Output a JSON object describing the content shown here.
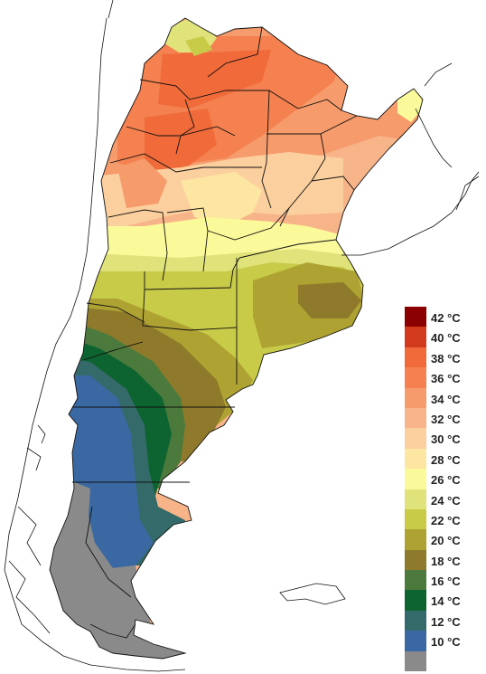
{
  "legend": {
    "items": [
      {
        "label": "42 °C",
        "color": "#8b0000"
      },
      {
        "label": "40 °C",
        "color": "#d23a1e"
      },
      {
        "label": "38 °C",
        "color": "#f06a3a"
      },
      {
        "label": "36 °C",
        "color": "#f4814f"
      },
      {
        "label": "34 °C",
        "color": "#f69b6b"
      },
      {
        "label": "32 °C",
        "color": "#f8b489"
      },
      {
        "label": "30 °C",
        "color": "#fbcf9e"
      },
      {
        "label": "28 °C",
        "color": "#fde6a1"
      },
      {
        "label": "26 °C",
        "color": "#fbfa9a"
      },
      {
        "label": "24 °C",
        "color": "#e0e27a"
      },
      {
        "label": "22 °C",
        "color": "#c8cb48"
      },
      {
        "label": "20 °C",
        "color": "#aea233"
      },
      {
        "label": "18 °C",
        "color": "#8e7a2a"
      },
      {
        "label": "16 °C",
        "color": "#4c7a3c"
      },
      {
        "label": "14 °C",
        "color": "#0d6430"
      },
      {
        "label": "12 °C",
        "color": "#356a6a"
      },
      {
        "label": "10 °C",
        "color": "#3a68a2"
      },
      {
        "label": "",
        "color": "#8a8a8a"
      }
    ]
  }
}
